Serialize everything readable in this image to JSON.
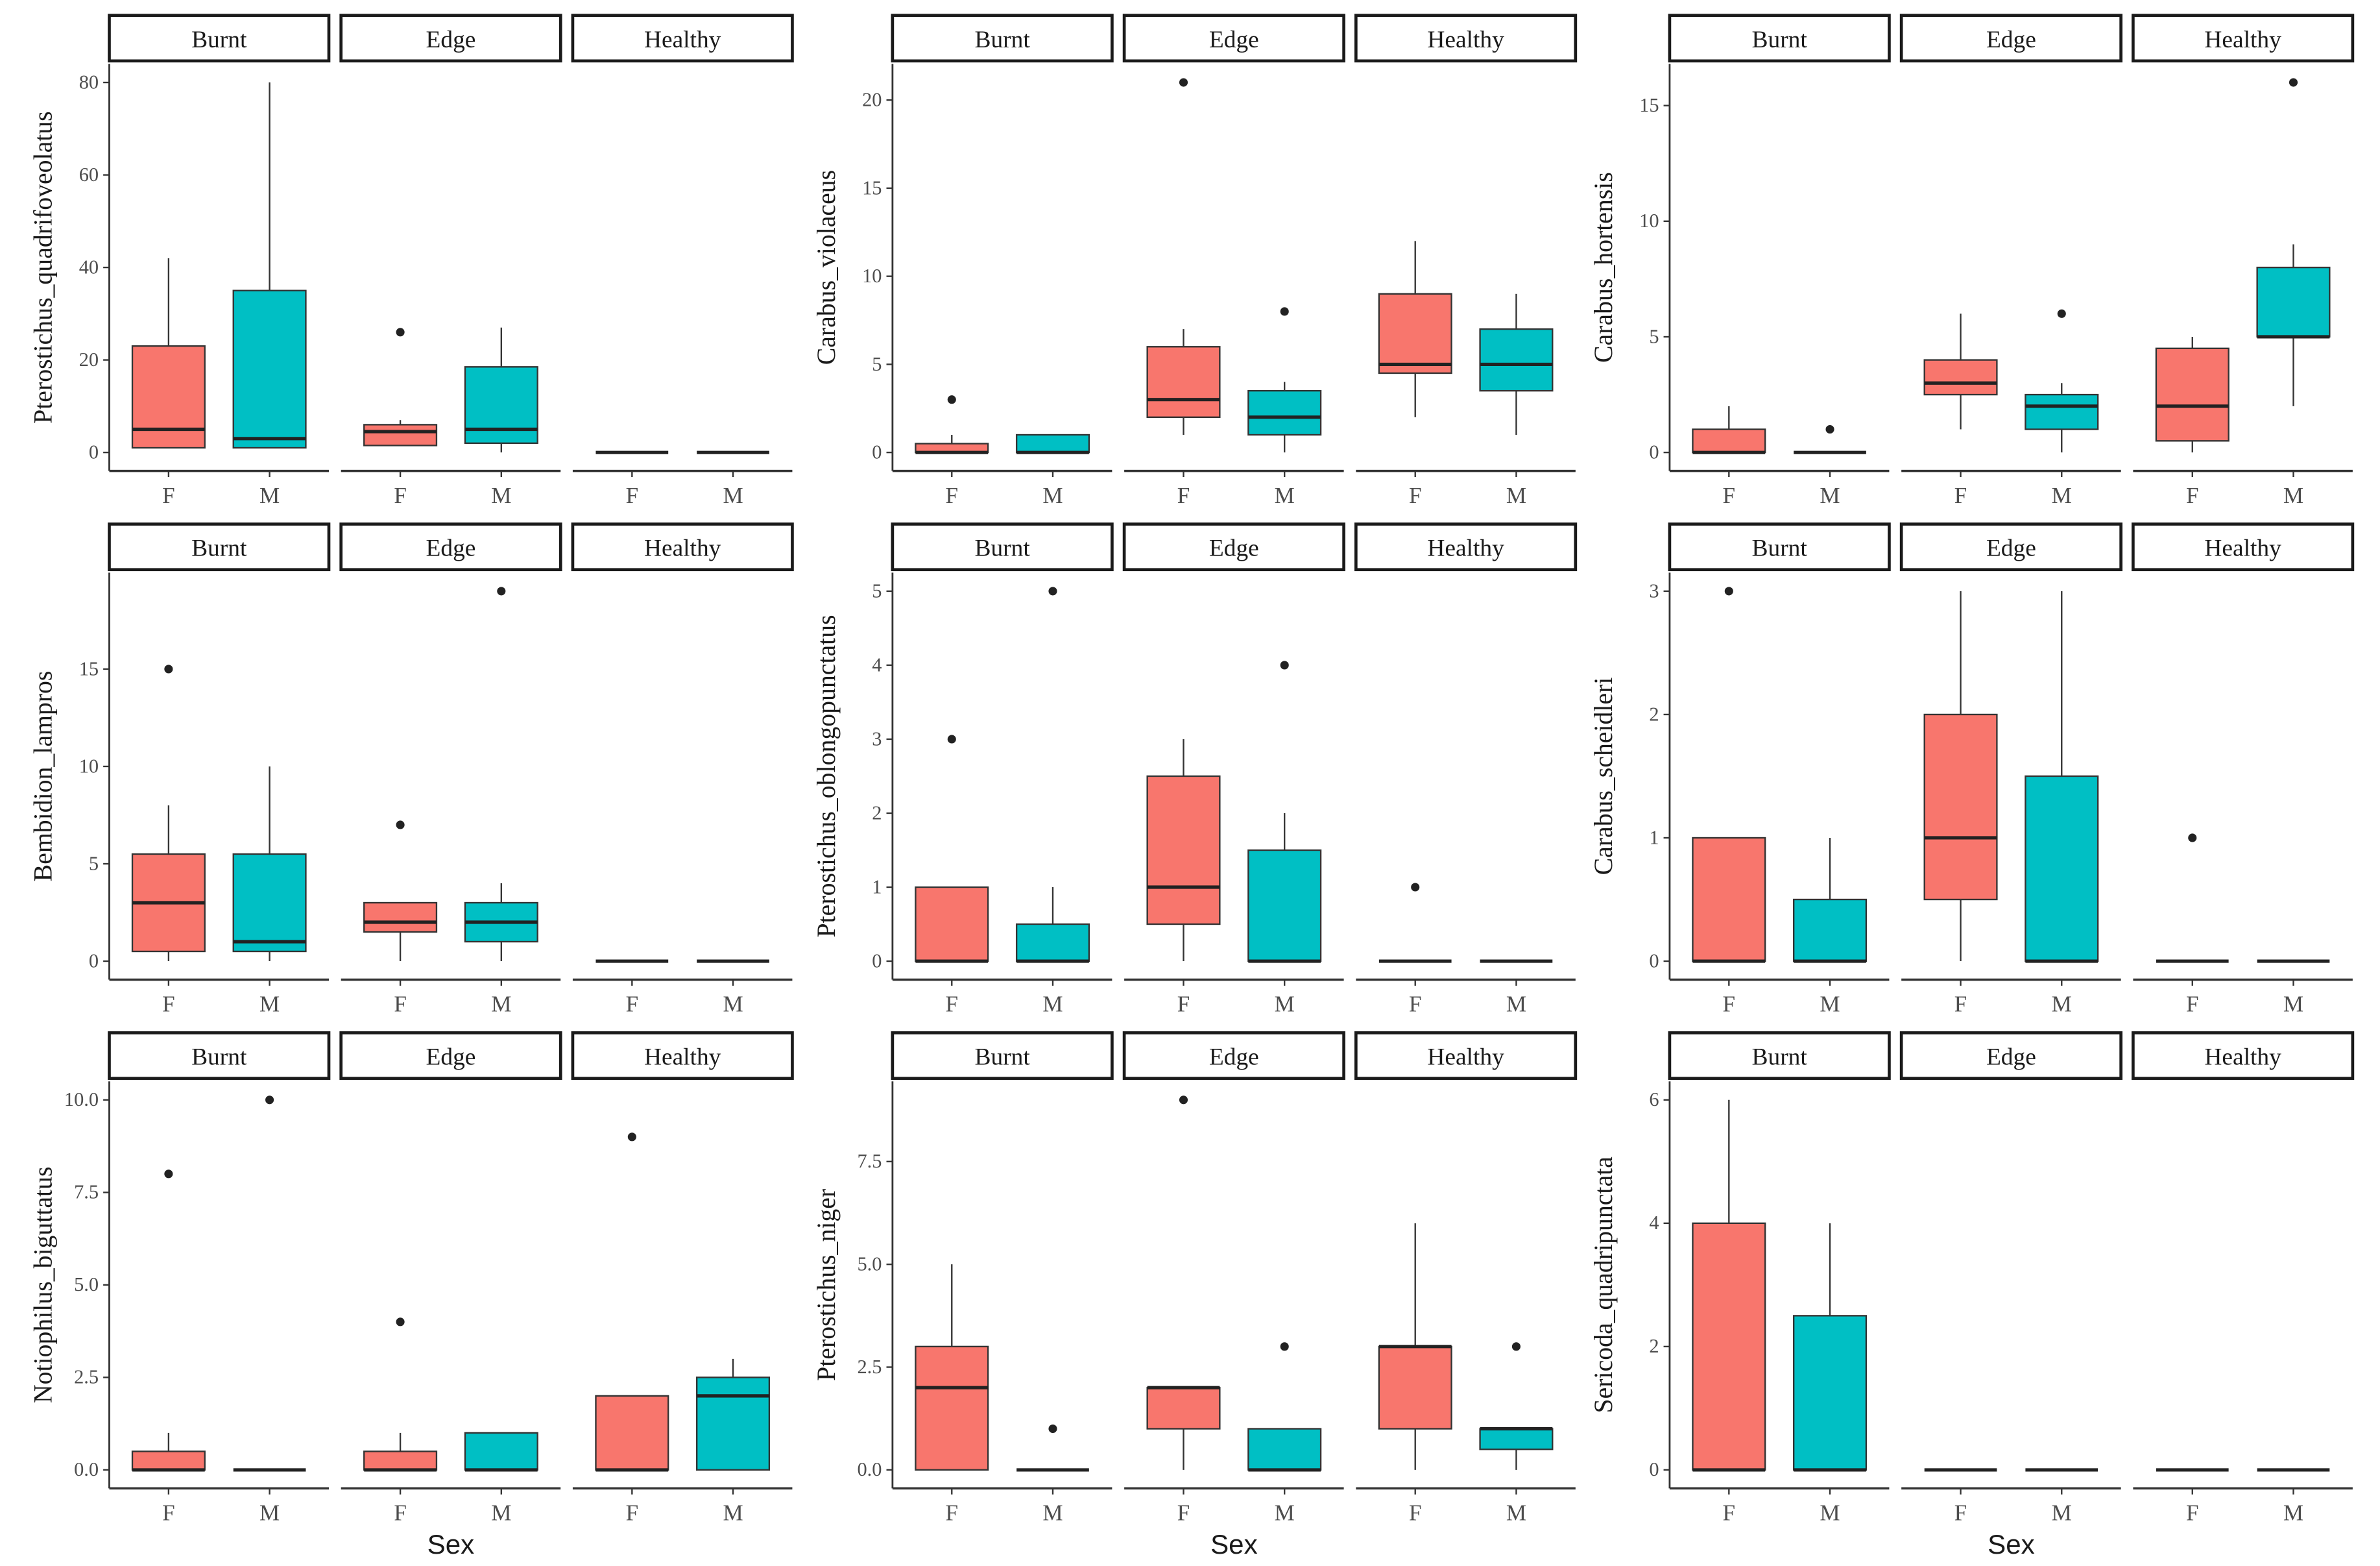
{
  "chart_data": {
    "type": "boxplot",
    "facets": [
      "Burnt",
      "Edge",
      "Healthy"
    ],
    "categories": [
      "F",
      "M"
    ],
    "xlabel": "Sex",
    "colors": {
      "F": "#F8766D",
      "M": "#00BFC4"
    },
    "box_format": "[min, q1, median, q3, max, outliers]",
    "panels": [
      {
        "ylabel": "Pterostichus_quadrifoveolatus",
        "yticks": [
          "0",
          "20",
          "40",
          "60",
          "80"
        ],
        "ytick_values": [
          0,
          20,
          40,
          60,
          80
        ],
        "data": {
          "Burnt": {
            "F": [
              1,
              1,
              5,
              23,
              42,
              []
            ],
            "M": [
              1,
              1,
              3,
              35,
              80,
              []
            ]
          },
          "Edge": {
            "F": [
              1.5,
              1.5,
              4.5,
              6,
              7,
              [
                26
              ]
            ],
            "M": [
              0,
              2,
              5,
              18.5,
              27,
              []
            ]
          },
          "Healthy": {
            "F": [
              0,
              0,
              0,
              0,
              0,
              []
            ],
            "M": [
              0,
              0,
              0,
              0,
              0,
              []
            ]
          }
        }
      },
      {
        "ylabel": "Carabus_violaceus",
        "yticks": [
          "0",
          "5",
          "10",
          "15",
          "20"
        ],
        "ytick_values": [
          0,
          5,
          10,
          15,
          20
        ],
        "data": {
          "Burnt": {
            "F": [
              0,
              0,
              0,
              0.5,
              1,
              [
                3
              ]
            ],
            "M": [
              0,
              0,
              0,
              1,
              1,
              []
            ]
          },
          "Edge": {
            "F": [
              1,
              2,
              3,
              6,
              7,
              [
                21
              ]
            ],
            "M": [
              0,
              1,
              2,
              3.5,
              4,
              [
                8
              ]
            ]
          },
          "Healthy": {
            "F": [
              2,
              4.5,
              5,
              9,
              12,
              []
            ],
            "M": [
              1,
              3.5,
              5,
              7,
              9,
              []
            ]
          }
        }
      },
      {
        "ylabel": "Carabus_hortensis",
        "yticks": [
          "0",
          "5",
          "10",
          "15"
        ],
        "ytick_values": [
          0,
          5,
          10,
          15
        ],
        "data": {
          "Burnt": {
            "F": [
              0,
              0,
              0,
              1,
              2,
              []
            ],
            "M": [
              0,
              0,
              0,
              0,
              0,
              [
                1
              ]
            ]
          },
          "Edge": {
            "F": [
              1,
              2.5,
              3,
              4,
              6,
              []
            ],
            "M": [
              0,
              1,
              2,
              2.5,
              3,
              [
                6
              ]
            ]
          },
          "Healthy": {
            "F": [
              0,
              0.5,
              2,
              4.5,
              5,
              []
            ],
            "M": [
              2,
              5,
              5,
              8,
              9,
              [
                16
              ]
            ]
          }
        }
      },
      {
        "ylabel": "Bembidion_lampros",
        "yticks": [
          "0",
          "5",
          "10",
          "15"
        ],
        "ytick_values": [
          0,
          5,
          10,
          15
        ],
        "data": {
          "Burnt": {
            "F": [
              0,
              0.5,
              3,
              5.5,
              8,
              [
                15
              ]
            ],
            "M": [
              0,
              0.5,
              1,
              5.5,
              10,
              []
            ]
          },
          "Edge": {
            "F": [
              0,
              1.5,
              2,
              3,
              3,
              [
                7
              ]
            ],
            "M": [
              0,
              1,
              2,
              3,
              4,
              [
                19
              ]
            ]
          },
          "Healthy": {
            "F": [
              0,
              0,
              0,
              0,
              0,
              []
            ],
            "M": [
              0,
              0,
              0,
              0,
              0,
              []
            ]
          }
        }
      },
      {
        "ylabel": "Pterostichus_oblongopunctatus",
        "yticks": [
          "0",
          "1",
          "2",
          "3",
          "4",
          "5"
        ],
        "ytick_values": [
          0,
          1,
          2,
          3,
          4,
          5
        ],
        "data": {
          "Burnt": {
            "F": [
              0,
              0,
              0,
              1,
              1,
              [
                3
              ]
            ],
            "M": [
              0,
              0,
              0,
              0.5,
              1,
              [
                5
              ]
            ]
          },
          "Edge": {
            "F": [
              0,
              0.5,
              1,
              2.5,
              3,
              []
            ],
            "M": [
              0,
              0,
              0,
              1.5,
              2,
              [
                4
              ]
            ]
          },
          "Healthy": {
            "F": [
              0,
              0,
              0,
              0,
              0,
              [
                1
              ]
            ],
            "M": [
              0,
              0,
              0,
              0,
              0,
              []
            ]
          }
        }
      },
      {
        "ylabel": "Carabus_scheidleri",
        "yticks": [
          "0",
          "1",
          "2",
          "3"
        ],
        "ytick_values": [
          0,
          1,
          2,
          3
        ],
        "data": {
          "Burnt": {
            "F": [
              0,
              0,
              0,
              1,
              1,
              [
                3
              ]
            ],
            "M": [
              0,
              0,
              0,
              0.5,
              1,
              []
            ]
          },
          "Edge": {
            "F": [
              0,
              0.5,
              1,
              2,
              3,
              []
            ],
            "M": [
              0,
              0,
              0,
              1.5,
              3,
              []
            ]
          },
          "Healthy": {
            "F": [
              0,
              0,
              0,
              0,
              0,
              [
                1
              ]
            ],
            "M": [
              0,
              0,
              0,
              0,
              0,
              []
            ]
          }
        }
      },
      {
        "ylabel": "Notiophilus_biguttatus",
        "yticks": [
          "0.0",
          "2.5",
          "5.0",
          "7.5",
          "10.0"
        ],
        "ytick_values": [
          0,
          2.5,
          5,
          7.5,
          10
        ],
        "data": {
          "Burnt": {
            "F": [
              0,
              0,
              0,
              0.5,
              1,
              [
                8
              ]
            ],
            "M": [
              0,
              0,
              0,
              0,
              0,
              [
                10
              ]
            ]
          },
          "Edge": {
            "F": [
              0,
              0,
              0,
              0.5,
              1,
              [
                4
              ]
            ],
            "M": [
              0,
              0,
              0,
              1,
              1,
              []
            ]
          },
          "Healthy": {
            "F": [
              0,
              0,
              0,
              2,
              2,
              [
                9
              ]
            ],
            "M": [
              0,
              0,
              2,
              2.5,
              3,
              []
            ]
          }
        }
      },
      {
        "ylabel": "Pterostichus_niger",
        "yticks": [
          "0.0",
          "2.5",
          "5.0",
          "7.5"
        ],
        "ytick_values": [
          0,
          2.5,
          5,
          7.5
        ],
        "data": {
          "Burnt": {
            "F": [
              0,
              0,
              2,
              3,
              5,
              []
            ],
            "M": [
              0,
              0,
              0,
              0,
              0,
              [
                1
              ]
            ]
          },
          "Edge": {
            "F": [
              0,
              1,
              2,
              2,
              2,
              [
                9
              ]
            ],
            "M": [
              0,
              0,
              0,
              1,
              1,
              [
                3
              ]
            ]
          },
          "Healthy": {
            "F": [
              0,
              1,
              3,
              3,
              6,
              []
            ],
            "M": [
              0,
              0.5,
              1,
              1,
              1,
              [
                3
              ]
            ]
          }
        }
      },
      {
        "ylabel": "Sericoda_quadripunctata",
        "yticks": [
          "0",
          "2",
          "4",
          "6"
        ],
        "ytick_values": [
          0,
          2,
          4,
          6
        ],
        "data": {
          "Burnt": {
            "F": [
              0,
              0,
              0,
              4,
              6,
              []
            ],
            "M": [
              0,
              0,
              0,
              2.5,
              4,
              []
            ]
          },
          "Edge": {
            "F": [
              0,
              0,
              0,
              0,
              0,
              []
            ],
            "M": [
              0,
              0,
              0,
              0,
              0,
              []
            ]
          },
          "Healthy": {
            "F": [
              0,
              0,
              0,
              0,
              0,
              []
            ],
            "M": [
              0,
              0,
              0,
              0,
              0,
              []
            ]
          }
        }
      }
    ]
  }
}
